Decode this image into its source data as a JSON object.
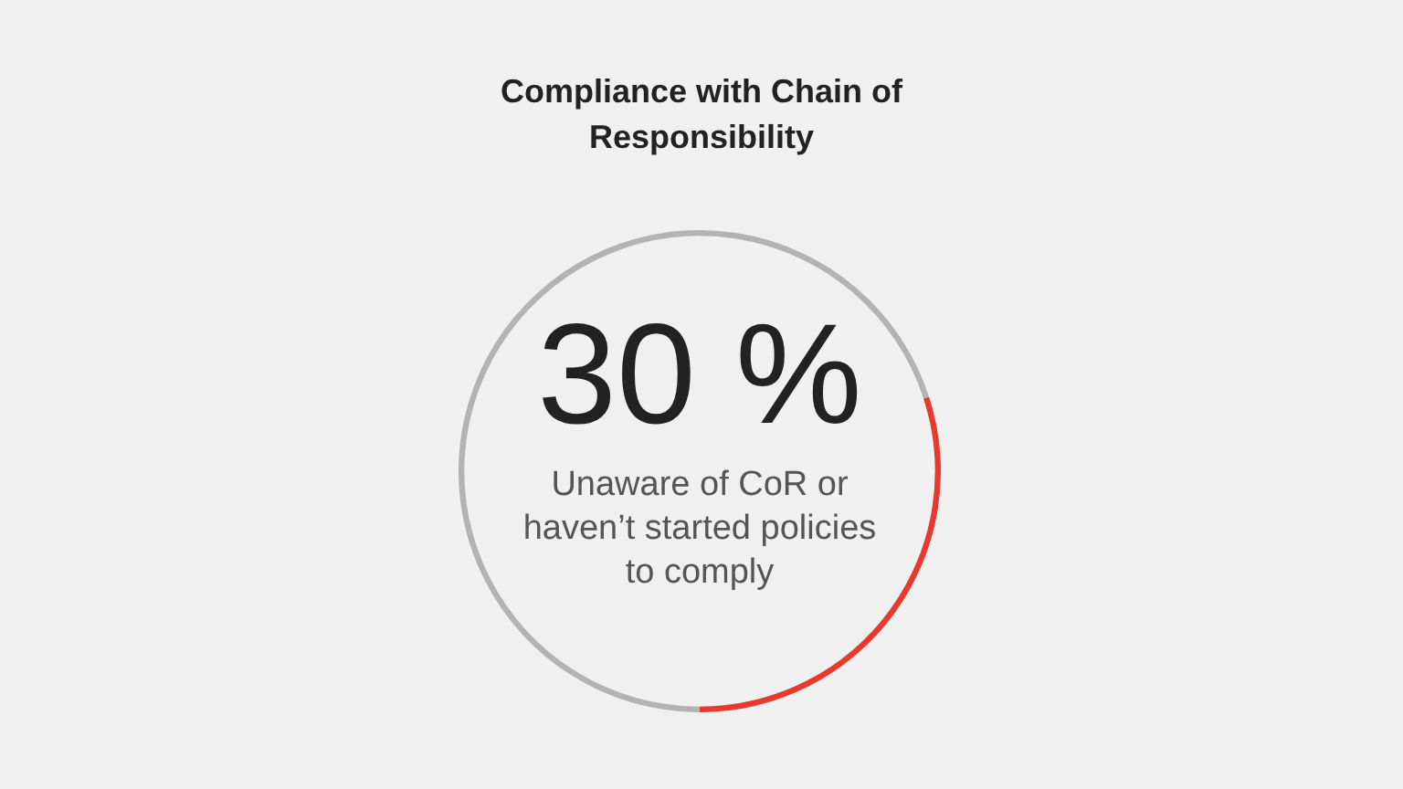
{
  "chart_data": {
    "type": "donut",
    "title": "Compliance with Chain of Responsibility",
    "categories": [
      "Unaware of CoR or haven’t started policies to comply",
      null
    ],
    "values": [
      30,
      70
    ],
    "colors": [
      "#e8392e",
      "#b3b3b3"
    ],
    "value_labels": [
      "30 %",
      null
    ]
  }
}
